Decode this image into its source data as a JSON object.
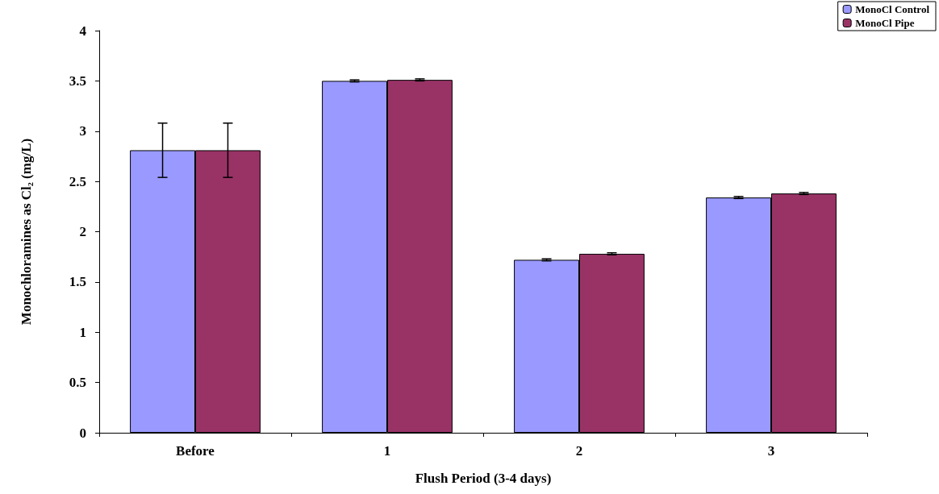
{
  "chart_data": {
    "type": "bar",
    "xlabel": "Flush Period (3-4 days)",
    "ylabel": "Monochloramines as Cl₂ (mg/L)",
    "categories": [
      "Before",
      "1",
      "2",
      "3"
    ],
    "series": [
      {
        "name": "MonoCl Control",
        "color": "#9999ff",
        "values": [
          2.81,
          3.5,
          1.72,
          2.34
        ],
        "errors": [
          0.27,
          0.01,
          0.01,
          0.01
        ]
      },
      {
        "name": "MonoCl Pipe",
        "color": "#993366",
        "values": [
          2.81,
          3.51,
          1.78,
          2.38
        ],
        "errors": [
          0.27,
          0.01,
          0.01,
          0.01
        ]
      }
    ],
    "ylim": [
      0,
      4
    ],
    "yticks": [
      0,
      0.5,
      1,
      1.5,
      2,
      2.5,
      3,
      3.5,
      4
    ],
    "grid": false,
    "legend": "top right"
  }
}
